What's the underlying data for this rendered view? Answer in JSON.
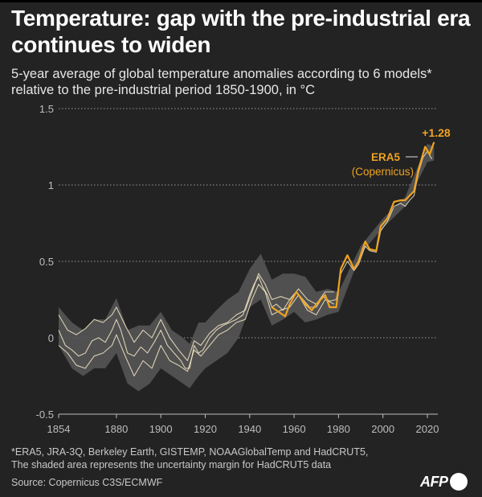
{
  "header": {
    "title": "Temperature: gap with the pre-industrial era continues to widen",
    "subtitle": "5-year average of global temperature anomalies according to 6 models* relative to the pre-industrial period 1850-1900, in °C"
  },
  "chart_data": {
    "type": "line",
    "title": "Temperature: gap with the pre-industrial era continues to widen",
    "ylabel": "°C",
    "xlim": [
      1854,
      2024
    ],
    "ylim": [
      -0.5,
      1.5
    ],
    "xticks": [
      "1854",
      "1880",
      "1900",
      "1920",
      "1940",
      "1960",
      "1980",
      "2000",
      "2020"
    ],
    "yticks": [
      "1.5",
      "1",
      "0.5",
      "0",
      "-0.5"
    ],
    "grid": "horizontal dotted",
    "colors": {
      "era5": "#f0a322",
      "others": "#f3e6c4",
      "band": "#555555",
      "background": "#232323"
    },
    "annotations": {
      "last_value": "+1.28",
      "era5_label": "ERA5",
      "era5_sublabel": "(Copernicus)"
    },
    "uncertainty_band": {
      "years": [
        1854,
        1860,
        1865,
        1870,
        1875,
        1880,
        1885,
        1890,
        1895,
        1900,
        1905,
        1910,
        1913,
        1917,
        1920,
        1925,
        1930,
        1935,
        1940,
        1945,
        1950,
        1955,
        1960,
        1965,
        1970,
        1975,
        1980,
        1990,
        2000,
        2010,
        2020,
        2023
      ],
      "upper": [
        0.2,
        0.1,
        0.05,
        0.12,
        0.12,
        0.26,
        0.05,
        0.08,
        0.08,
        0.17,
        0.05,
        0.0,
        -0.04,
        0.1,
        0.1,
        0.18,
        0.25,
        0.3,
        0.45,
        0.55,
        0.38,
        0.42,
        0.42,
        0.4,
        0.3,
        0.32,
        0.3,
        0.6,
        0.78,
        0.92,
        1.27,
        1.25
      ],
      "lower": [
        -0.05,
        -0.2,
        -0.25,
        -0.2,
        -0.2,
        -0.1,
        -0.3,
        -0.35,
        -0.3,
        -0.2,
        -0.25,
        -0.3,
        -0.33,
        -0.25,
        -0.2,
        -0.15,
        -0.1,
        0.0,
        0.2,
        0.25,
        0.08,
        0.12,
        0.17,
        0.1,
        0.12,
        0.15,
        0.17,
        0.55,
        0.72,
        0.86,
        1.15,
        1.16
      ]
    },
    "series": [
      {
        "years": [
          1854,
          1857,
          1860,
          1863,
          1866,
          1869,
          1872,
          1875,
          1878,
          1880,
          1882,
          1885,
          1888,
          1891,
          1894,
          1897,
          1900,
          1903,
          1906,
          1909,
          1911,
          1913,
          1915,
          1917,
          1919,
          1922,
          1925,
          1928,
          1931,
          1934,
          1937,
          1940,
          1942,
          1944,
          1946,
          1948,
          1950,
          1952,
          1955,
          1958,
          1961,
          1964,
          1967,
          1970,
          1973,
          1976,
          1979,
          1981,
          1984,
          1987,
          1989,
          1992,
          1994,
          1997,
          1999,
          2002,
          2005,
          2008,
          2010,
          2012,
          2014,
          2016,
          2018,
          2020,
          2022
        ],
        "values": [
          0.05,
          -0.05,
          -0.08,
          -0.12,
          -0.1,
          -0.02,
          0.0,
          -0.03,
          0.05,
          0.12,
          0.05,
          -0.1,
          -0.12,
          -0.06,
          -0.1,
          -0.03,
          0.05,
          -0.05,
          -0.1,
          -0.15,
          -0.2,
          -0.2,
          -0.05,
          -0.1,
          -0.08,
          0.0,
          0.05,
          0.08,
          0.1,
          0.12,
          0.15,
          0.28,
          0.35,
          0.4,
          0.33,
          0.28,
          0.2,
          0.22,
          0.18,
          0.25,
          0.3,
          0.25,
          0.2,
          0.2,
          0.27,
          0.24,
          0.25,
          0.42,
          0.5,
          0.44,
          0.48,
          0.6,
          0.57,
          0.56,
          0.7,
          0.76,
          0.86,
          0.88,
          0.86,
          0.9,
          0.93,
          1.08,
          1.18,
          1.22,
          1.17
        ]
      },
      {
        "years": [
          1854,
          1858,
          1862,
          1866,
          1870,
          1874,
          1878,
          1880,
          1884,
          1888,
          1892,
          1896,
          1900,
          1904,
          1908,
          1912,
          1915,
          1918,
          1922,
          1926,
          1930,
          1934,
          1938,
          1941,
          1944,
          1947,
          1950,
          1954,
          1958,
          1962,
          1966,
          1970,
          1974,
          1978
        ],
        "values": [
          0.15,
          0.05,
          0.02,
          0.06,
          0.12,
          0.1,
          0.15,
          0.2,
          0.08,
          -0.03,
          0.05,
          0.0,
          0.12,
          0.0,
          -0.08,
          -0.15,
          -0.02,
          -0.05,
          0.03,
          0.08,
          0.1,
          0.15,
          0.18,
          0.3,
          0.42,
          0.35,
          0.25,
          0.27,
          0.25,
          0.32,
          0.25,
          0.22,
          0.3,
          0.3
        ]
      },
      {
        "years": [
          1854,
          1858,
          1862,
          1866,
          1870,
          1874,
          1878,
          1880,
          1884,
          1888,
          1892,
          1896,
          1900,
          1904,
          1908,
          1912,
          1915,
          1918,
          1922,
          1926,
          1930,
          1934,
          1938,
          1941,
          1944,
          1947,
          1950,
          1954,
          1958,
          1962,
          1966,
          1970,
          1974,
          1978
        ],
        "values": [
          -0.05,
          -0.1,
          -0.18,
          -0.2,
          -0.12,
          -0.1,
          -0.05,
          0.02,
          -0.12,
          -0.25,
          -0.15,
          -0.2,
          -0.05,
          -0.15,
          -0.18,
          -0.22,
          -0.08,
          -0.12,
          -0.05,
          0.02,
          0.05,
          0.1,
          0.12,
          0.25,
          0.35,
          0.3,
          0.15,
          0.18,
          0.2,
          0.28,
          0.18,
          0.15,
          0.25,
          0.22
        ]
      },
      {
        "name": "ERA5 (Copernicus)",
        "years": [
          1950,
          1952,
          1956,
          1958,
          1961,
          1965,
          1968,
          1970,
          1972,
          1974,
          1976,
          1979,
          1981,
          1984,
          1987,
          1989,
          1992,
          1994,
          1997,
          1999,
          2002,
          2005,
          2008,
          2010,
          2012,
          2014,
          2016,
          2019,
          2021,
          2023
        ],
        "values": [
          0.2,
          0.18,
          0.14,
          0.22,
          0.3,
          0.22,
          0.18,
          0.22,
          0.25,
          0.28,
          0.2,
          0.2,
          0.45,
          0.54,
          0.45,
          0.5,
          0.63,
          0.58,
          0.57,
          0.73,
          0.78,
          0.89,
          0.9,
          0.9,
          0.93,
          0.96,
          1.1,
          1.25,
          1.2,
          1.28
        ]
      }
    ]
  },
  "footer": {
    "note_line1": "*ERA5, JRA-3Q, Berkeley Earth, GISTEMP, NOAAGlobalTemp and HadCRUT5,",
    "note_line2": "The shaded area represents the uncertainty margin for HadCRUT5 data",
    "source": "Source: Copernicus C3S/ECMWF",
    "logo": "AFP"
  }
}
